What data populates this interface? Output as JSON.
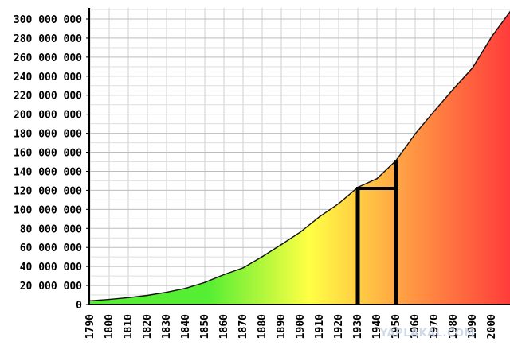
{
  "chart_data": {
    "type": "area",
    "title": "",
    "xlabel": "",
    "ylabel": "",
    "x": [
      1790,
      1800,
      1810,
      1820,
      1830,
      1840,
      1850,
      1860,
      1870,
      1880,
      1890,
      1900,
      1910,
      1920,
      1930,
      1940,
      1950,
      1960,
      1970,
      1980,
      1990,
      2000,
      2010
    ],
    "values": [
      3929214,
      5308483,
      7239881,
      9638453,
      12866020,
      17069453,
      23191876,
      31443321,
      38558371,
      50189209,
      62979766,
      76212168,
      92228496,
      106021537,
      123202624,
      132164569,
      151325798,
      179323175,
      203302031,
      226542199,
      248709873,
      281421906,
      308745538
    ],
    "xlim": [
      1785,
      2015
    ],
    "ylim": [
      0,
      300000000
    ],
    "x_ticks": [
      "1790",
      "1800",
      "1810",
      "1820",
      "1830",
      "1840",
      "1850",
      "1860",
      "1870",
      "1880",
      "1890",
      "1900",
      "1910",
      "1920",
      "1930",
      "1940",
      "1950",
      "1960",
      "1970",
      "1980",
      "1990",
      "2000"
    ],
    "y_ticks": [
      "0",
      "20 000 000",
      "40 000 000",
      "60 000 000",
      "80 000 000",
      "100 000 000",
      "120 000 000",
      "140 000 000",
      "160 000 000",
      "180 000 000",
      "200 000 000",
      "220 000 000",
      "240 000 000",
      "260 000 000",
      "280 000 000",
      "300 000 000"
    ],
    "grid": true,
    "fill_gradient": [
      "#55ee33",
      "#ffff44",
      "#ff9944",
      "#ff3b3b"
    ],
    "annotations": {
      "vertical_markers": [
        1930,
        1950
      ],
      "horizontal_level": 122000000,
      "color": "#000000"
    },
    "watermark": "YAPLAKAL.COM"
  }
}
